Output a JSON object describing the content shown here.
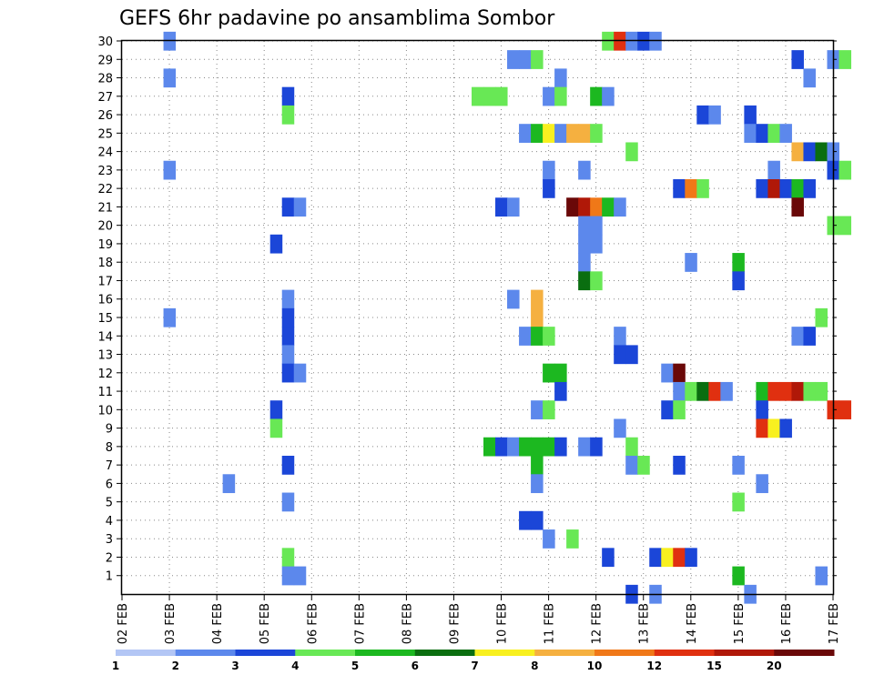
{
  "chart_data": {
    "type": "heatmap",
    "title": "GEFS 6hr padavine po ansamblima Sombor",
    "x_tick_labels": [
      "02 FEB",
      "03 FEB",
      "04 FEB",
      "05 FEB",
      "06 FEB",
      "07 FEB",
      "08 FEB",
      "09 FEB",
      "10 FEB",
      "11 FEB",
      "12 FEB",
      "13 FEB",
      "14 FEB",
      "15 FEB",
      "16 FEB",
      "17 FEB"
    ],
    "y_tick_labels": [
      "1",
      "2",
      "3",
      "4",
      "5",
      "6",
      "7",
      "8",
      "9",
      "10",
      "11",
      "12",
      "13",
      "14",
      "15",
      "16",
      "17",
      "18",
      "19",
      "20",
      "21",
      "22",
      "23",
      "24",
      "25",
      "26",
      "27",
      "28",
      "29",
      "30"
    ],
    "x_range_days": [
      2,
      17
    ],
    "y_range": [
      0,
      30
    ],
    "grid": true,
    "colorbar_levels": [
      "1",
      "2",
      "3",
      "4",
      "5",
      "6",
      "7",
      "8",
      "10",
      "12",
      "15",
      "20"
    ],
    "colorbar_colors": [
      "#b3c6f5",
      "#5c88ec",
      "#1b46d8",
      "#68e855",
      "#1cb820",
      "#0a6e10",
      "#f8f020",
      "#f5b040",
      "#f07818",
      "#e03010",
      "#b01808",
      "#6a0808"
    ],
    "cells": [
      [
        3.0,
        30,
        1
      ],
      [
        3.0,
        28,
        1
      ],
      [
        3.0,
        23,
        1
      ],
      [
        3.0,
        15,
        1
      ],
      [
        4.25,
        6,
        1
      ],
      [
        5.25,
        19,
        2
      ],
      [
        5.25,
        10,
        2
      ],
      [
        5.25,
        9,
        3
      ],
      [
        5.5,
        27,
        2
      ],
      [
        5.5,
        26,
        3
      ],
      [
        5.5,
        21,
        2
      ],
      [
        5.5,
        16,
        1
      ],
      [
        5.5,
        15,
        2
      ],
      [
        5.5,
        14,
        2
      ],
      [
        5.5,
        13,
        1
      ],
      [
        5.5,
        12,
        2
      ],
      [
        5.5,
        7,
        2
      ],
      [
        5.5,
        5,
        1
      ],
      [
        5.5,
        2,
        3
      ],
      [
        5.5,
        1,
        1
      ],
      [
        5.75,
        21,
        1
      ],
      [
        5.75,
        12,
        1
      ],
      [
        5.75,
        1,
        1
      ],
      [
        9.5,
        27,
        3
      ],
      [
        9.75,
        27,
        3
      ],
      [
        10.0,
        27,
        3
      ],
      [
        9.75,
        8,
        4
      ],
      [
        10.0,
        8,
        2
      ],
      [
        10.0,
        21,
        2
      ],
      [
        10.25,
        29,
        1
      ],
      [
        10.25,
        21,
        1
      ],
      [
        10.25,
        16,
        1
      ],
      [
        10.25,
        8,
        1
      ],
      [
        10.5,
        29,
        1
      ],
      [
        10.5,
        25,
        1
      ],
      [
        10.5,
        14,
        1
      ],
      [
        10.5,
        8,
        4
      ],
      [
        10.5,
        4,
        2
      ],
      [
        10.75,
        29,
        3
      ],
      [
        10.75,
        25,
        4
      ],
      [
        10.75,
        16,
        7
      ],
      [
        10.75,
        15,
        7
      ],
      [
        10.75,
        14,
        4
      ],
      [
        10.75,
        10,
        1
      ],
      [
        10.75,
        8,
        4
      ],
      [
        10.75,
        7,
        4
      ],
      [
        10.75,
        6,
        1
      ],
      [
        10.75,
        4,
        2
      ],
      [
        11.0,
        27,
        1
      ],
      [
        11.0,
        25,
        6
      ],
      [
        11.0,
        23,
        1
      ],
      [
        11.0,
        22,
        2
      ],
      [
        11.0,
        14,
        3
      ],
      [
        11.0,
        12,
        4
      ],
      [
        11.0,
        10,
        3
      ],
      [
        11.0,
        8,
        4
      ],
      [
        11.0,
        3,
        1
      ],
      [
        11.25,
        28,
        1
      ],
      [
        11.25,
        27,
        3
      ],
      [
        11.25,
        25,
        1
      ],
      [
        11.25,
        12,
        4
      ],
      [
        11.25,
        11,
        2
      ],
      [
        11.25,
        8,
        2
      ],
      [
        11.5,
        25,
        7
      ],
      [
        11.5,
        21,
        11
      ],
      [
        11.5,
        3,
        3
      ],
      [
        11.75,
        25,
        7
      ],
      [
        11.75,
        23,
        1
      ],
      [
        11.75,
        21,
        10
      ],
      [
        11.75,
        20,
        1
      ],
      [
        11.75,
        19,
        1
      ],
      [
        11.75,
        18,
        1
      ],
      [
        11.75,
        17,
        5
      ],
      [
        11.75,
        8,
        1
      ],
      [
        12.0,
        27,
        4
      ],
      [
        12.0,
        25,
        3
      ],
      [
        12.0,
        21,
        8
      ],
      [
        12.0,
        20,
        1
      ],
      [
        12.0,
        19,
        1
      ],
      [
        12.0,
        17,
        3
      ],
      [
        12.0,
        8,
        2
      ],
      [
        12.25,
        30,
        3
      ],
      [
        12.25,
        27,
        1
      ],
      [
        12.25,
        21,
        4
      ],
      [
        12.25,
        2,
        2
      ],
      [
        12.5,
        30,
        9
      ],
      [
        12.5,
        21,
        1
      ],
      [
        12.5,
        14,
        1
      ],
      [
        12.5,
        13,
        2
      ],
      [
        12.5,
        9,
        1
      ],
      [
        12.75,
        30,
        1
      ],
      [
        12.75,
        24,
        3
      ],
      [
        12.75,
        13,
        2
      ],
      [
        12.75,
        8,
        3
      ],
      [
        12.75,
        7,
        1
      ],
      [
        12.75,
        0,
        2
      ],
      [
        13.0,
        30,
        2
      ],
      [
        13.0,
        7,
        3
      ],
      [
        13.25,
        30,
        1
      ],
      [
        13.25,
        2,
        2
      ],
      [
        13.25,
        0,
        1
      ],
      [
        13.5,
        12,
        1
      ],
      [
        13.5,
        10,
        2
      ],
      [
        13.5,
        2,
        6
      ],
      [
        13.75,
        22,
        2
      ],
      [
        13.75,
        12,
        11
      ],
      [
        13.75,
        11,
        1
      ],
      [
        13.75,
        10,
        3
      ],
      [
        13.75,
        7,
        2
      ],
      [
        13.75,
        2,
        9
      ],
      [
        14.0,
        22,
        8
      ],
      [
        14.0,
        18,
        1
      ],
      [
        14.0,
        11,
        3
      ],
      [
        14.0,
        2,
        2
      ],
      [
        14.25,
        26,
        2
      ],
      [
        14.25,
        22,
        3
      ],
      [
        14.25,
        11,
        5
      ],
      [
        14.5,
        26,
        1
      ],
      [
        14.5,
        11,
        9
      ],
      [
        14.75,
        11,
        1
      ],
      [
        15.0,
        18,
        4
      ],
      [
        15.0,
        17,
        2
      ],
      [
        15.0,
        7,
        1
      ],
      [
        15.0,
        5,
        3
      ],
      [
        15.0,
        1,
        4
      ],
      [
        15.25,
        26,
        2
      ],
      [
        15.25,
        25,
        1
      ],
      [
        15.25,
        0,
        1
      ],
      [
        15.5,
        25,
        2
      ],
      [
        15.5,
        22,
        2
      ],
      [
        15.5,
        11,
        4
      ],
      [
        15.5,
        10,
        2
      ],
      [
        15.5,
        9,
        9
      ],
      [
        15.5,
        6,
        1
      ],
      [
        15.75,
        25,
        3
      ],
      [
        15.75,
        23,
        1
      ],
      [
        15.75,
        22,
        10
      ],
      [
        15.75,
        11,
        9
      ],
      [
        15.75,
        9,
        6
      ],
      [
        16.0,
        25,
        1
      ],
      [
        16.0,
        22,
        2
      ],
      [
        16.0,
        11,
        9
      ],
      [
        16.0,
        9,
        2
      ],
      [
        16.25,
        29,
        2
      ],
      [
        16.25,
        24,
        7
      ],
      [
        16.25,
        22,
        4
      ],
      [
        16.25,
        21,
        11
      ],
      [
        16.25,
        11,
        10
      ],
      [
        16.25,
        14,
        1
      ],
      [
        16.5,
        28,
        1
      ],
      [
        16.5,
        24,
        2
      ],
      [
        16.5,
        22,
        2
      ],
      [
        16.5,
        14,
        2
      ],
      [
        16.5,
        11,
        3
      ],
      [
        16.75,
        24,
        5
      ],
      [
        16.75,
        15,
        3
      ],
      [
        16.75,
        11,
        3
      ],
      [
        16.75,
        1,
        1
      ],
      [
        17.0,
        29,
        1
      ],
      [
        17.0,
        24,
        1
      ],
      [
        17.0,
        23,
        2
      ],
      [
        17.0,
        20,
        3
      ],
      [
        17.0,
        10,
        9
      ],
      [
        17.25,
        29,
        3
      ],
      [
        17.25,
        23,
        3
      ],
      [
        17.25,
        20,
        3
      ],
      [
        17.25,
        10,
        9
      ]
    ]
  }
}
